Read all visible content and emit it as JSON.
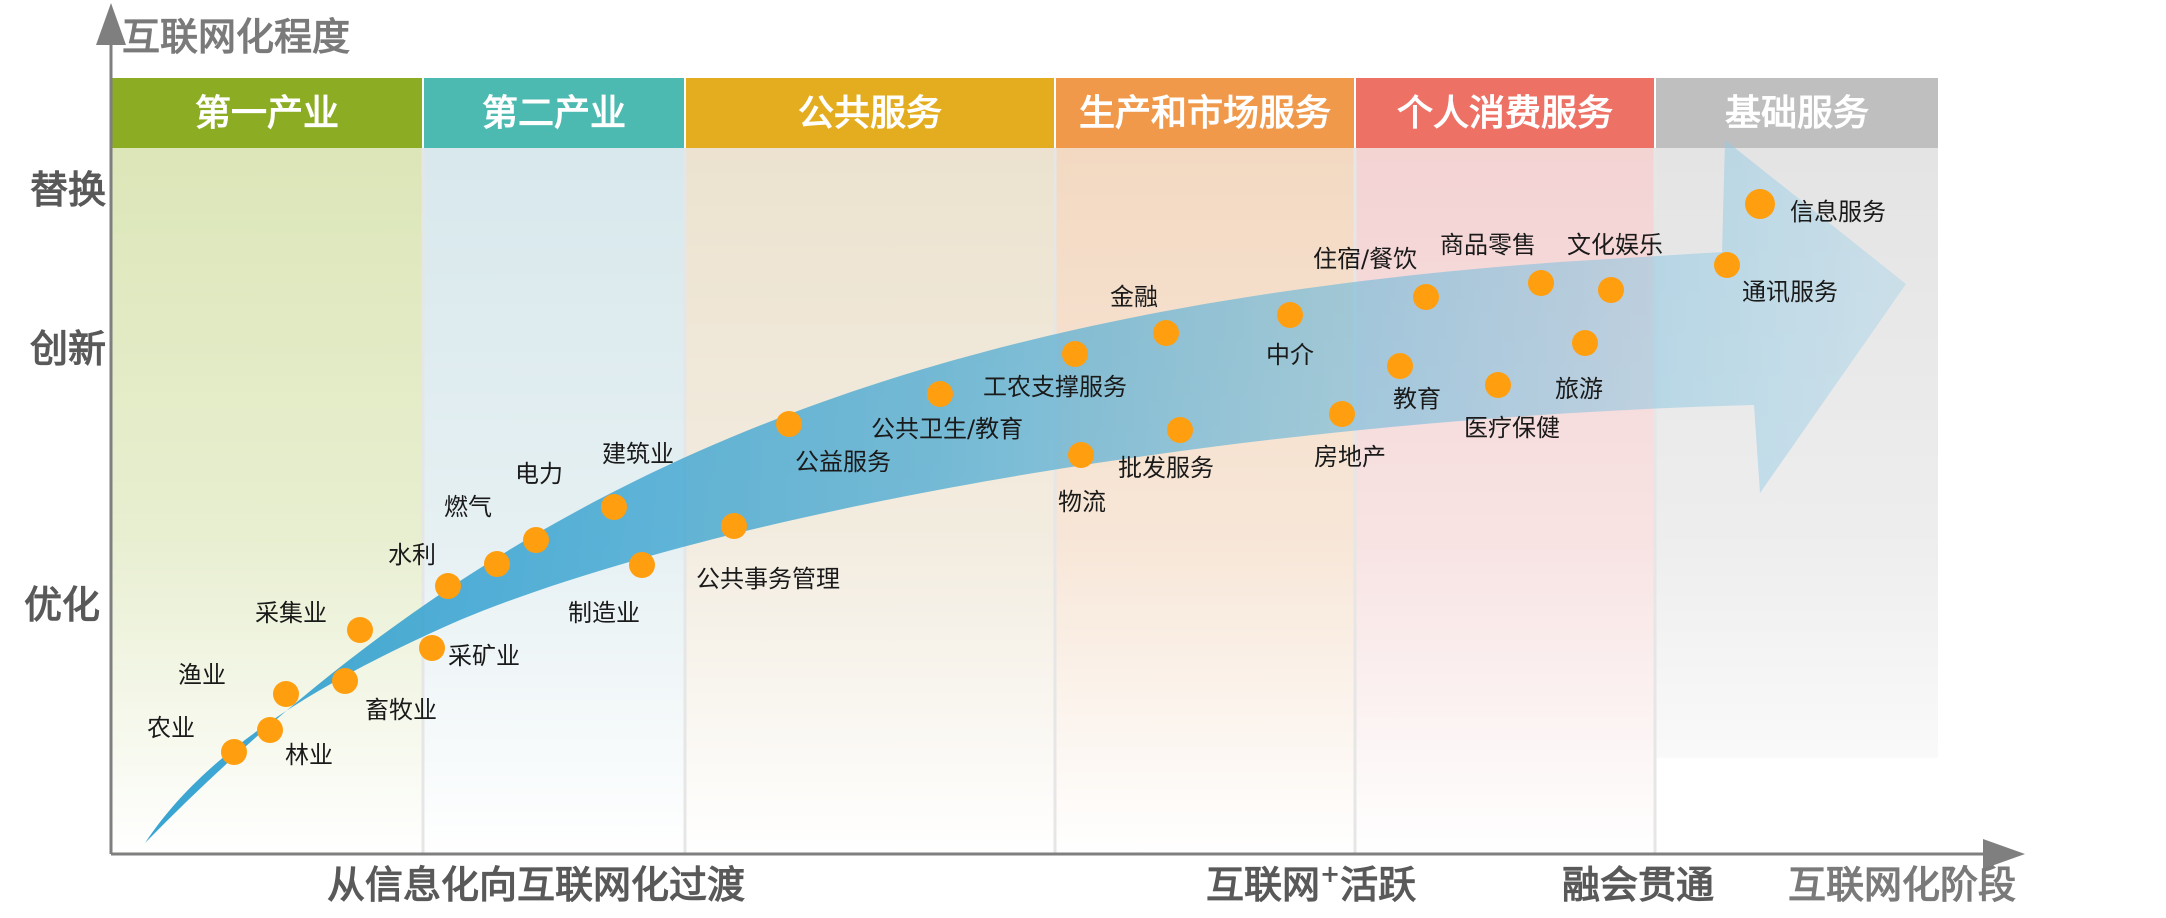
{
  "axes": {
    "y_title": "互联网化程度",
    "x_title": "互联网化阶段",
    "y_levels": [
      {
        "key": "replace",
        "label": "替换"
      },
      {
        "key": "innovate",
        "label": "创新"
      },
      {
        "key": "optimize",
        "label": "优化"
      }
    ],
    "x_stages": [
      {
        "key": "transition",
        "label": "从信息化向互联网化过渡"
      },
      {
        "key": "active",
        "label": "互联网",
        "sup": "+",
        "suffix": "活跃"
      },
      {
        "key": "fusion",
        "label": "融会贯通"
      }
    ]
  },
  "columns": [
    {
      "key": "primary",
      "label": "第一产业",
      "color": "#8cad23",
      "bg": "#dce6b8"
    },
    {
      "key": "secondary",
      "label": "第二产业",
      "color": "#4cbab0",
      "bg": "#d8e8ec"
    },
    {
      "key": "public",
      "label": "公共服务",
      "color": "#e3ad1f",
      "bg": "#ece2cf"
    },
    {
      "key": "production",
      "label": "生产和市场服务",
      "color": "#f0994b",
      "bg": "#f3d9c2"
    },
    {
      "key": "consumer",
      "label": "个人消费服务",
      "color": "#ee7166",
      "bg": "#f4d3d3"
    },
    {
      "key": "basic",
      "label": "基础服务",
      "color": "#bfbfbf",
      "bg": "#e4e4e4"
    }
  ],
  "points": [
    {
      "key": "agriculture",
      "label": "农业"
    },
    {
      "key": "forestry",
      "label": "林业"
    },
    {
      "key": "fishery",
      "label": "渔业"
    },
    {
      "key": "husbandry",
      "label": "畜牧业"
    },
    {
      "key": "gathering",
      "label": "采集业"
    },
    {
      "key": "mining",
      "label": "采矿业"
    },
    {
      "key": "water",
      "label": "水利"
    },
    {
      "key": "gas",
      "label": "燃气"
    },
    {
      "key": "power",
      "label": "电力"
    },
    {
      "key": "construction",
      "label": "建筑业"
    },
    {
      "key": "manufacturing",
      "label": "制造业"
    },
    {
      "key": "public-affairs",
      "label": "公共事务管理"
    },
    {
      "key": "public-welfare",
      "label": "公益服务"
    },
    {
      "key": "health-education",
      "label": "公共卫生/教育"
    },
    {
      "key": "agri-industry-support",
      "label": "工农支撑服务"
    },
    {
      "key": "logistics",
      "label": "物流"
    },
    {
      "key": "finance",
      "label": "金融"
    },
    {
      "key": "wholesale",
      "label": "批发服务"
    },
    {
      "key": "agency",
      "label": "中介"
    },
    {
      "key": "real-estate",
      "label": "房地产"
    },
    {
      "key": "lodging-dining",
      "label": "住宿/餐饮"
    },
    {
      "key": "education",
      "label": "教育"
    },
    {
      "key": "retail",
      "label": "商品零售"
    },
    {
      "key": "healthcare",
      "label": "医疗保健"
    },
    {
      "key": "culture-entertainment",
      "label": "文化娱乐"
    },
    {
      "key": "tourism",
      "label": "旅游"
    },
    {
      "key": "telecom",
      "label": "通讯服务"
    },
    {
      "key": "info-services",
      "label": "信息服务"
    }
  ]
}
